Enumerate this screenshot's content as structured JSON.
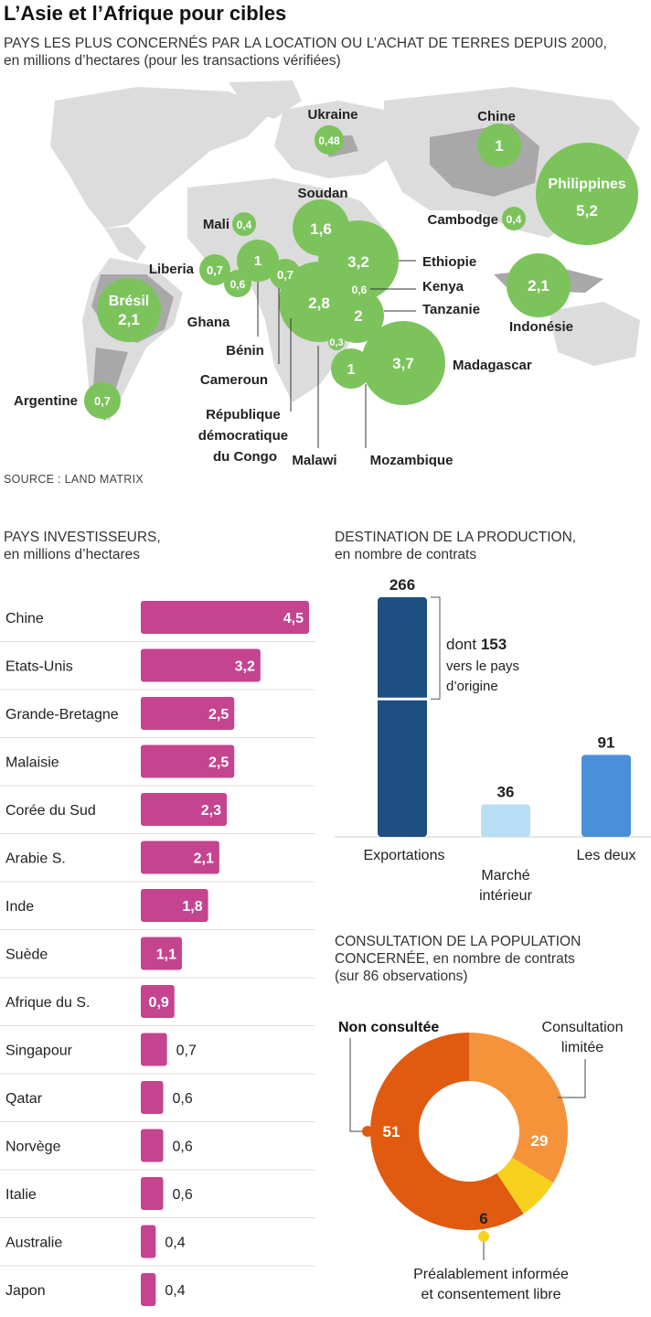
{
  "map": {
    "title": "L’Asie et l’Afrique pour cibles",
    "subtitle_caps": "PAYS LES PLUS CONCERNÉS PAR LA LOCATION OU L’ACHAT DE TERRES DEPUIS 2000,",
    "subtitle_rest": "en millions d’hectares (pour les transactions vérifiées)",
    "source": "SOURCE : LAND MATRIX",
    "bubble_color": "#7cc35c",
    "countries": [
      {
        "name": "Ukraine",
        "value": "0,48"
      },
      {
        "name": "Chine",
        "value": "1"
      },
      {
        "name": "Philippines",
        "value": "5,2"
      },
      {
        "name": "Soudan",
        "value": "1,6"
      },
      {
        "name": "Cambodge",
        "value": "0,4"
      },
      {
        "name": "Mali",
        "value": "0,4"
      },
      {
        "name": "Liberia",
        "value": "0,7"
      },
      {
        "name": "Ghana",
        "value": "0,6"
      },
      {
        "name": "Bénin",
        "value": "1"
      },
      {
        "name": "Cameroun",
        "value": "0,7"
      },
      {
        "name": "République démocratique du Congo",
        "value": "2,8"
      },
      {
        "name": "Ethiopie",
        "value": "3,2"
      },
      {
        "name": "Kenya",
        "value": "0,6"
      },
      {
        "name": "Tanzanie",
        "value": "2"
      },
      {
        "name": "Malawi",
        "value": "0,3"
      },
      {
        "name": "Mozambique",
        "value": "1"
      },
      {
        "name": "Madagascar",
        "value": "3,7"
      },
      {
        "name": "Indonésie",
        "value": "2,1"
      },
      {
        "name": "Brésil",
        "value": "2,1"
      },
      {
        "name": "Argentine",
        "value": "0,7"
      }
    ]
  },
  "chart_data": [
    {
      "type": "bar",
      "orientation": "horizontal",
      "title": "PAYS INVESTISSEURS,",
      "subtitle": "en millions d’hectares",
      "color": "#c4448f",
      "categories": [
        "Chine",
        "Etats-Unis",
        "Grande-Bretagne",
        "Malaisie",
        "Corée du Sud",
        "Arabie S.",
        "Inde",
        "Suède",
        "Afrique du S.",
        "Singapour",
        "Qatar",
        "Norvège",
        "Italie",
        "Australie",
        "Japon"
      ],
      "values": [
        4.5,
        3.2,
        2.5,
        2.5,
        2.3,
        2.1,
        1.8,
        1.1,
        0.9,
        0.7,
        0.6,
        0.6,
        0.6,
        0.4,
        0.4
      ],
      "labels": [
        "4,5",
        "3,2",
        "2,5",
        "2,5",
        "2,3",
        "2,1",
        "1,8",
        "1,1",
        "0,9",
        "0,7",
        "0,6",
        "0,6",
        "0,6",
        "0,4",
        "0,4"
      ],
      "xlim": [
        0,
        4.5
      ]
    },
    {
      "type": "bar",
      "title": "DESTINATION DE LA PRODUCTION,",
      "subtitle": "en nombre de contrats",
      "categories": [
        "Exportations",
        "Marché intérieur",
        "Les deux"
      ],
      "values": [
        266,
        36,
        91
      ],
      "labels": [
        "266",
        "36",
        "91"
      ],
      "colors": [
        "#1d4f80",
        "#b8def5",
        "#4a90d9"
      ],
      "annotation": {
        "prefix": "dont",
        "value": "153",
        "line1": "vers le pays",
        "line2": "d’origine",
        "value_num": 153
      },
      "ylim": [
        0,
        266
      ]
    },
    {
      "type": "pie",
      "variant": "donut",
      "title_line1": "CONSULTATION DE LA POPULATION",
      "title_line2_caps": "CONCERNÉE,",
      "title_line2_rest": " en nombre de contrats",
      "title_line3": "(sur 86 observations)",
      "total": 86,
      "slices": [
        {
          "label_line1": "Non consultée",
          "label_line2": "",
          "value": 51,
          "value_label": "51",
          "color": "#e05a10"
        },
        {
          "label_line1": "Consultation",
          "label_line2": "limitée",
          "value": 29,
          "value_label": "29",
          "color": "#f5933a"
        },
        {
          "label_line1": "Préalablement informée",
          "label_line2": "et consentement libre",
          "value": 6,
          "value_label": "6",
          "color": "#f7d11e"
        }
      ]
    }
  ]
}
